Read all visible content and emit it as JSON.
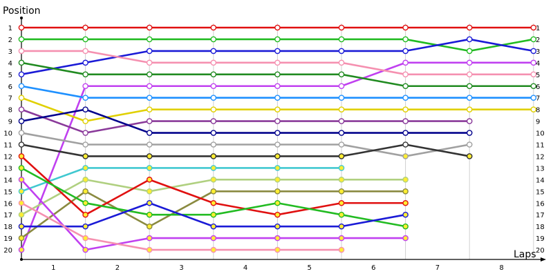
{
  "chart_data": {
    "type": "line",
    "ylabel": "Position",
    "xlabel": "Laps",
    "x_ticks": [
      "1",
      "2",
      "3",
      "4",
      "5",
      "6",
      "7",
      "8"
    ],
    "y_ticks": [
      "1",
      "2",
      "3",
      "4",
      "5",
      "6",
      "7",
      "8",
      "9",
      "10",
      "11",
      "12",
      "13",
      "14",
      "15",
      "16",
      "17",
      "18",
      "19",
      "20"
    ],
    "grid": "vertical",
    "series": [
      {
        "color": "#e01010",
        "values": [
          1,
          1,
          1,
          1,
          1,
          1,
          1,
          1,
          1
        ]
      },
      {
        "color": "#22bb22",
        "values": [
          2,
          2,
          2,
          2,
          2,
          2,
          2,
          3,
          2
        ]
      },
      {
        "color": "#1a1ad6",
        "values": [
          5,
          4,
          3,
          3,
          3,
          3,
          3,
          2,
          3
        ]
      },
      {
        "color": "#c040f0",
        "values": [
          20,
          6,
          6,
          6,
          6,
          6,
          4,
          4,
          4
        ]
      },
      {
        "color": "#f590b0",
        "values": [
          3,
          3,
          4,
          4,
          4,
          4,
          5,
          5,
          5
        ]
      },
      {
        "color": "#208a20",
        "values": [
          4,
          5,
          5,
          5,
          5,
          5,
          6,
          6,
          6
        ]
      },
      {
        "color": "#1e90ff",
        "values": [
          6,
          7,
          7,
          7,
          7,
          7,
          7,
          7,
          7
        ]
      },
      {
        "color": "#e0d000",
        "values": [
          7,
          9,
          8,
          8,
          8,
          8,
          8,
          8,
          8
        ]
      },
      {
        "color": "#8a3a9a",
        "values": [
          8,
          10,
          9,
          9,
          9,
          9,
          9,
          9
        ]
      },
      {
        "color": "#00008b",
        "values": [
          9,
          8,
          10,
          10,
          10,
          10,
          10,
          10
        ]
      },
      {
        "color": "#a0a0a0",
        "values": [
          10,
          11,
          11,
          11,
          11,
          11,
          12,
          11
        ]
      },
      {
        "color": "#333333",
        "values": [
          11,
          12,
          12,
          12,
          12,
          12,
          11,
          12
        ]
      },
      {
        "color": "#40c8d0",
        "values": [
          15,
          13,
          13,
          13,
          13,
          13
        ]
      },
      {
        "color": "#b0d080",
        "values": [
          17,
          14,
          15,
          14,
          14,
          14,
          14
        ]
      },
      {
        "color": "#8a8a40",
        "values": [
          19,
          15,
          18,
          15,
          15,
          15,
          15
        ]
      },
      {
        "color": "#e01010",
        "values": [
          12,
          17,
          14,
          16,
          17,
          16,
          16
        ]
      },
      {
        "color": "#22bb22",
        "values": [
          13,
          16,
          17,
          17,
          16,
          17,
          18
        ]
      },
      {
        "color": "#1a1ad6",
        "values": [
          18,
          18,
          16,
          18,
          18,
          18,
          17
        ]
      },
      {
        "color": "#c040f0",
        "values": [
          14,
          20,
          19,
          19,
          19,
          19,
          19
        ]
      },
      {
        "color": "#f590b0",
        "values": [
          16,
          19,
          20,
          20,
          20,
          20
        ]
      }
    ]
  }
}
